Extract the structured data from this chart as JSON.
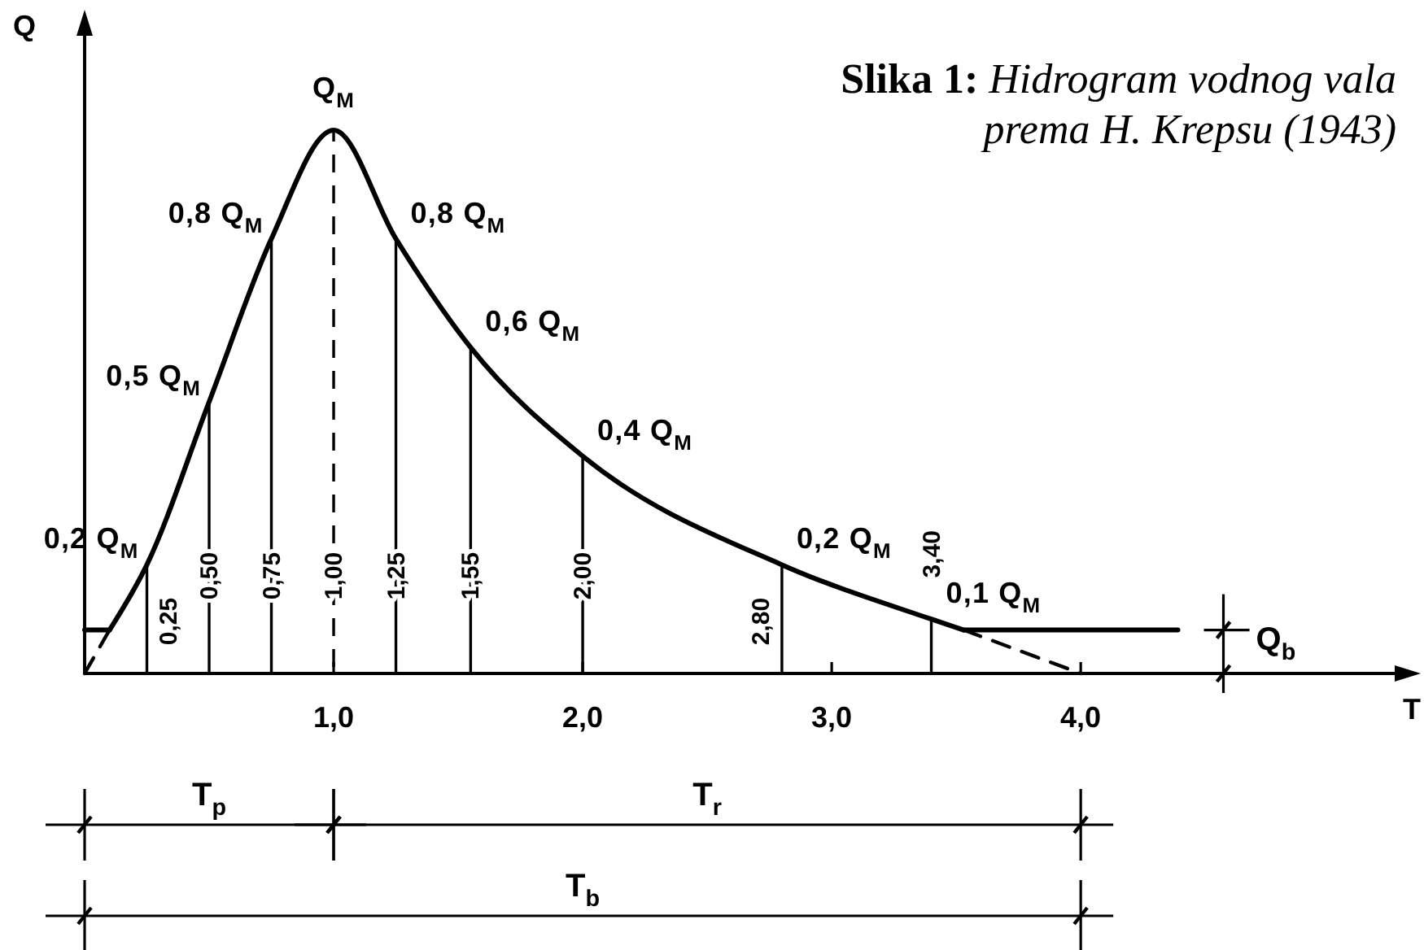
{
  "chart_data": {
    "type": "line",
    "title": "Slika 1:",
    "subtitle": "Hidrogram vodnog vala prema H. Krepsu (1943)",
    "xlabel": "T",
    "ylabel": "Q",
    "xlim": [
      0,
      5.3
    ],
    "xticks": [
      {
        "value": 1,
        "label": "1,0"
      },
      {
        "value": 2,
        "label": "2,0"
      },
      {
        "value": 3,
        "label": "3,0"
      },
      {
        "value": 4,
        "label": "4,0"
      }
    ],
    "line_style": "solid",
    "series": [
      {
        "type": "bar",
        "color": "#000000",
        "x": [
          0.25,
          0.5,
          0.75,
          1.25,
          1.55,
          2.0,
          2.8,
          3.4
        ],
        "values": [
          0.2,
          0.5,
          0.8,
          0.8,
          0.6,
          0.4,
          0.2,
          0.1
        ]
      },
      {
        "type": "bar",
        "color": "#000000",
        "line_style": "dashed",
        "x": [
          1.0
        ],
        "values": [
          1
        ]
      },
      {
        "color": "#000000",
        "x": [
          0.1,
          0.25,
          0.5,
          0.75,
          1.0,
          1.25,
          1.55,
          2.0,
          2.8,
          3.4,
          3.53
        ],
        "values": [
          0.08,
          0.2,
          0.5,
          0.8,
          1,
          0.8,
          0.6,
          0.4,
          0.2,
          0.1,
          0.08
        ],
        "value_labels": [
          null,
          "0,2 Q$_{M}$",
          "0,5 Q$_{M}$",
          "0,8 Q$_{M}$",
          "Q$_{M}$",
          "0,8 Q$_{M}$",
          "0,6 Q$_{M}$",
          "0,4 Q$_{M}$",
          "0,2 Q$_{M}$",
          "0,1 Q$_{M}$",
          null
        ]
      },
      {
        "color": "#000000",
        "x": [
          0,
          0.1
        ],
        "values": [
          0.08,
          0.08
        ]
      },
      {
        "color": "#000000",
        "x": [
          3.53,
          4.39
        ],
        "values": [
          0.08,
          0.08
        ]
      },
      {
        "color": "#000000",
        "line_style": "dashed",
        "x": [
          0,
          0.1
        ],
        "values": [
          0,
          0.08
        ]
      },
      {
        "color": "#000000",
        "line_style": "dashed",
        "x": [
          3.53,
          4.0
        ],
        "values": [
          0.08,
          0
        ]
      }
    ],
    "annotations": [
      "0,25",
      "0,50",
      "0,75",
      "1,00",
      "1,25",
      "1,55",
      "2,00",
      "2,80",
      "3,40",
      {
        "text": "Q$_{b}$",
        "x": 4.39,
        "y": 0.08
      },
      "T$_{p}$",
      "T$_{r}$",
      "T$_{b}$"
    ]
  }
}
